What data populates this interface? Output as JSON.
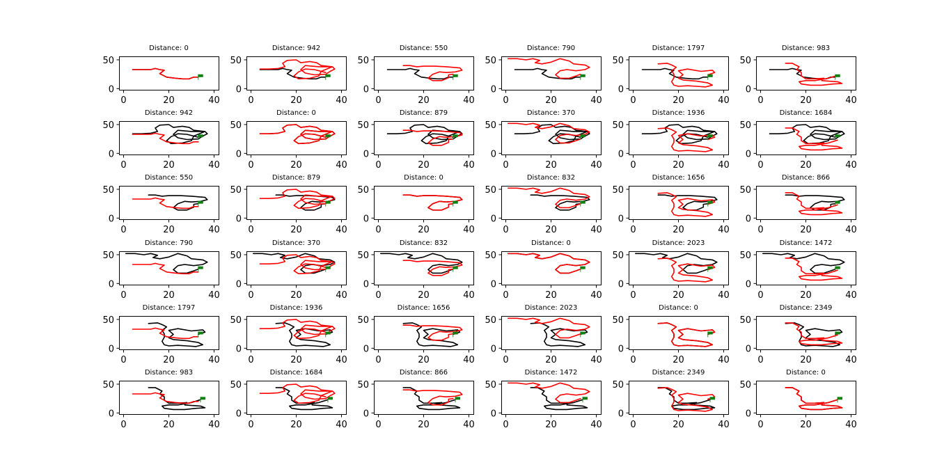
{
  "chart_data": {
    "type": "line",
    "grid": false,
    "rows": 6,
    "cols": 6,
    "xlim": [
      -2,
      42
    ],
    "ylim": [
      -2,
      56
    ],
    "xticks": [
      0,
      20,
      40
    ],
    "yticks": [
      0,
      50
    ],
    "colors": {
      "compare_path": "#000000",
      "reference_path": "#ff0000",
      "goal_flag": "#108010"
    },
    "paths": [
      {
        "name": "path A",
        "points": [
          [
            4,
            33
          ],
          [
            8,
            33
          ],
          [
            12,
            33
          ],
          [
            14,
            35
          ],
          [
            16,
            33
          ],
          [
            18,
            32
          ],
          [
            16,
            26
          ],
          [
            19,
            20
          ],
          [
            23,
            18
          ],
          [
            26,
            17
          ],
          [
            29,
            17
          ],
          [
            31,
            20
          ],
          [
            33,
            20
          ]
        ],
        "goal": [
          33,
          20
        ]
      },
      {
        "name": "path B",
        "points": [
          [
            4,
            34
          ],
          [
            8,
            34
          ],
          [
            12,
            35
          ],
          [
            15,
            38
          ],
          [
            14,
            44
          ],
          [
            16,
            49
          ],
          [
            20,
            50
          ],
          [
            22,
            45
          ],
          [
            26,
            47
          ],
          [
            29,
            45
          ],
          [
            31,
            40
          ],
          [
            36,
            38
          ],
          [
            37,
            34
          ],
          [
            35,
            30
          ],
          [
            33,
            25
          ],
          [
            28,
            24
          ],
          [
            24,
            27
          ],
          [
            22,
            33
          ],
          [
            24,
            40
          ],
          [
            30,
            38
          ],
          [
            36,
            38
          ],
          [
            31,
            30
          ],
          [
            30,
            22
          ],
          [
            26,
            18
          ],
          [
            21,
            17
          ],
          [
            19,
            22
          ],
          [
            21,
            29
          ],
          [
            24,
            34
          ],
          [
            28,
            33
          ],
          [
            33,
            28
          ]
        ],
        "goal": [
          33,
          28
        ]
      },
      {
        "name": "path C",
        "points": [
          [
            11,
            40
          ],
          [
            14,
            40
          ],
          [
            17,
            38
          ],
          [
            20,
            39
          ],
          [
            25,
            39
          ],
          [
            30,
            38
          ],
          [
            36,
            36
          ],
          [
            37,
            32
          ],
          [
            34,
            29
          ],
          [
            30,
            28
          ],
          [
            27,
            29
          ],
          [
            24,
            25
          ],
          [
            22,
            18
          ],
          [
            24,
            14
          ],
          [
            28,
            14
          ],
          [
            31,
            19
          ],
          [
            31,
            24
          ],
          [
            33,
            25
          ]
        ],
        "goal": [
          33,
          25
        ]
      },
      {
        "name": "path D",
        "points": [
          [
            1,
            52
          ],
          [
            5,
            52
          ],
          [
            9,
            50
          ],
          [
            12,
            52
          ],
          [
            15,
            49
          ],
          [
            13,
            45
          ],
          [
            16,
            43
          ],
          [
            20,
            46
          ],
          [
            24,
            52
          ],
          [
            28,
            48
          ],
          [
            30,
            43
          ],
          [
            35,
            41
          ],
          [
            37,
            37
          ],
          [
            35,
            33
          ],
          [
            31,
            31
          ],
          [
            27,
            33
          ],
          [
            24,
            31
          ],
          [
            22,
            24
          ],
          [
            24,
            18
          ],
          [
            28,
            18
          ],
          [
            31,
            22
          ],
          [
            33,
            25
          ]
        ],
        "goal": [
          33,
          25
        ]
      },
      {
        "name": "path E",
        "points": [
          [
            11,
            43
          ],
          [
            15,
            44
          ],
          [
            17,
            41
          ],
          [
            19,
            37
          ],
          [
            17,
            31
          ],
          [
            18,
            25
          ],
          [
            18,
            19
          ],
          [
            17,
            12
          ],
          [
            18,
            6
          ],
          [
            20,
            4
          ],
          [
            24,
            5
          ],
          [
            28,
            4
          ],
          [
            32,
            3
          ],
          [
            35,
            6
          ],
          [
            33,
            10
          ],
          [
            28,
            13
          ],
          [
            22,
            15
          ],
          [
            20,
            18
          ],
          [
            22,
            24
          ],
          [
            20,
            31
          ],
          [
            24,
            34
          ],
          [
            30,
            30
          ],
          [
            35,
            32
          ],
          [
            36,
            28
          ],
          [
            33,
            24
          ]
        ],
        "goal": [
          33,
          24
        ]
      },
      {
        "name": "path F",
        "points": [
          [
            11,
            44
          ],
          [
            14,
            44
          ],
          [
            17,
            38
          ],
          [
            16,
            33
          ],
          [
            18,
            28
          ],
          [
            18,
            22
          ],
          [
            20,
            17
          ],
          [
            24,
            17
          ],
          [
            28,
            18
          ],
          [
            27,
            14
          ],
          [
            30,
            13
          ],
          [
            34,
            12
          ],
          [
            36,
            9
          ],
          [
            32,
            8
          ],
          [
            27,
            6
          ],
          [
            22,
            6
          ],
          [
            18,
            8
          ],
          [
            17,
            12
          ],
          [
            20,
            14
          ],
          [
            24,
            14
          ],
          [
            30,
            18
          ],
          [
            34,
            23
          ]
        ],
        "goal": [
          34,
          23
        ]
      }
    ],
    "panels": [
      {
        "title": "Distance: 0",
        "distance": 0,
        "compare_path": "path A",
        "reference_path": "path A"
      },
      {
        "title": "Distance: 942",
        "distance": 942,
        "compare_path": "path A",
        "reference_path": "path B"
      },
      {
        "title": "Distance: 550",
        "distance": 550,
        "compare_path": "path A",
        "reference_path": "path C"
      },
      {
        "title": "Distance: 790",
        "distance": 790,
        "compare_path": "path A",
        "reference_path": "path D"
      },
      {
        "title": "Distance: 1797",
        "distance": 1797,
        "compare_path": "path A",
        "reference_path": "path E"
      },
      {
        "title": "Distance: 983",
        "distance": 983,
        "compare_path": "path A",
        "reference_path": "path F"
      },
      {
        "title": "Distance: 942",
        "distance": 942,
        "compare_path": "path B",
        "reference_path": "path A"
      },
      {
        "title": "Distance: 0",
        "distance": 0,
        "compare_path": "path B",
        "reference_path": "path B"
      },
      {
        "title": "Distance: 879",
        "distance": 879,
        "compare_path": "path B",
        "reference_path": "path C"
      },
      {
        "title": "Distance: 370",
        "distance": 370,
        "compare_path": "path B",
        "reference_path": "path D"
      },
      {
        "title": "Distance: 1936",
        "distance": 1936,
        "compare_path": "path B",
        "reference_path": "path E"
      },
      {
        "title": "Distance: 1684",
        "distance": 1684,
        "compare_path": "path B",
        "reference_path": "path F"
      },
      {
        "title": "Distance: 550",
        "distance": 550,
        "compare_path": "path C",
        "reference_path": "path A"
      },
      {
        "title": "Distance: 879",
        "distance": 879,
        "compare_path": "path C",
        "reference_path": "path B"
      },
      {
        "title": "Distance: 0",
        "distance": 0,
        "compare_path": "path C",
        "reference_path": "path C"
      },
      {
        "title": "Distance: 832",
        "distance": 832,
        "compare_path": "path C",
        "reference_path": "path D"
      },
      {
        "title": "Distance: 1656",
        "distance": 1656,
        "compare_path": "path C",
        "reference_path": "path E"
      },
      {
        "title": "Distance: 866",
        "distance": 866,
        "compare_path": "path C",
        "reference_path": "path F"
      },
      {
        "title": "Distance: 790",
        "distance": 790,
        "compare_path": "path D",
        "reference_path": "path A"
      },
      {
        "title": "Distance: 370",
        "distance": 370,
        "compare_path": "path D",
        "reference_path": "path B"
      },
      {
        "title": "Distance: 832",
        "distance": 832,
        "compare_path": "path D",
        "reference_path": "path C"
      },
      {
        "title": "Distance: 0",
        "distance": 0,
        "compare_path": "path D",
        "reference_path": "path D"
      },
      {
        "title": "Distance: 2023",
        "distance": 2023,
        "compare_path": "path D",
        "reference_path": "path E"
      },
      {
        "title": "Distance: 1472",
        "distance": 1472,
        "compare_path": "path D",
        "reference_path": "path F"
      },
      {
        "title": "Distance: 1797",
        "distance": 1797,
        "compare_path": "path E",
        "reference_path": "path A"
      },
      {
        "title": "Distance: 1936",
        "distance": 1936,
        "compare_path": "path E",
        "reference_path": "path B"
      },
      {
        "title": "Distance: 1656",
        "distance": 1656,
        "compare_path": "path E",
        "reference_path": "path C"
      },
      {
        "title": "Distance: 2023",
        "distance": 2023,
        "compare_path": "path E",
        "reference_path": "path D"
      },
      {
        "title": "Distance: 0",
        "distance": 0,
        "compare_path": "path E",
        "reference_path": "path E"
      },
      {
        "title": "Distance: 2349",
        "distance": 2349,
        "compare_path": "path E",
        "reference_path": "path F"
      },
      {
        "title": "Distance: 983",
        "distance": 983,
        "compare_path": "path F",
        "reference_path": "path A"
      },
      {
        "title": "Distance: 1684",
        "distance": 1684,
        "compare_path": "path F",
        "reference_path": "path B"
      },
      {
        "title": "Distance: 866",
        "distance": 866,
        "compare_path": "path F",
        "reference_path": "path C"
      },
      {
        "title": "Distance: 1472",
        "distance": 1472,
        "compare_path": "path F",
        "reference_path": "path D"
      },
      {
        "title": "Distance: 2349",
        "distance": 2349,
        "compare_path": "path F",
        "reference_path": "path E"
      },
      {
        "title": "Distance: 0",
        "distance": 0,
        "compare_path": "path F",
        "reference_path": "path F"
      }
    ]
  }
}
